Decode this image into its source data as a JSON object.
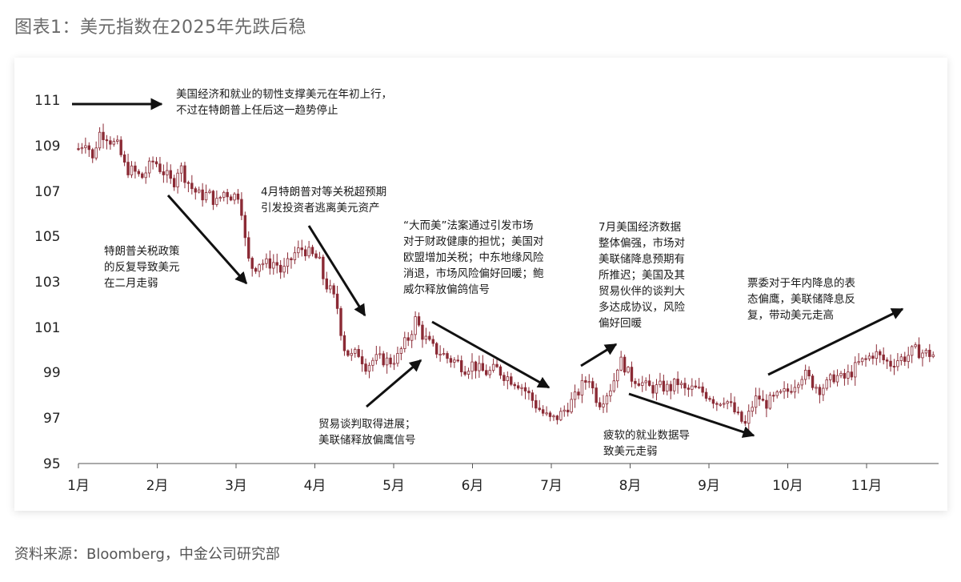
{
  "title": "图表1：美元指数在2025年先跌后稳",
  "source": "资料来源：Bloomberg，中金公司研究部",
  "colors": {
    "candle": "#8b2a35",
    "arrow": "#111111",
    "axis": "#444444"
  },
  "chart_data": {
    "type": "candlestick",
    "ylim": [
      95,
      111
    ],
    "yticks": [
      "95",
      "97",
      "99",
      "101",
      "103",
      "105",
      "107",
      "109",
      "111"
    ],
    "xlim": [
      0,
      10.85
    ],
    "xticks": [
      {
        "label": "1月",
        "x": 0
      },
      {
        "label": "2月",
        "x": 1
      },
      {
        "label": "3月",
        "x": 2
      },
      {
        "label": "4月",
        "x": 3
      },
      {
        "label": "5月",
        "x": 4
      },
      {
        "label": "6月",
        "x": 5
      },
      {
        "label": "7月",
        "x": 6
      },
      {
        "label": "8月",
        "x": 7
      },
      {
        "label": "9月",
        "x": 8
      },
      {
        "label": "10月",
        "x": 9
      },
      {
        "label": "11月",
        "x": 10
      }
    ],
    "anchors": [
      [
        0.0,
        108.9
      ],
      [
        0.1,
        109.3
      ],
      [
        0.18,
        108.4
      ],
      [
        0.26,
        109.6
      ],
      [
        0.35,
        109.5
      ],
      [
        0.42,
        109.2
      ],
      [
        0.5,
        109.0
      ],
      [
        0.6,
        108.0
      ],
      [
        0.7,
        107.9
      ],
      [
        0.8,
        107.6
      ],
      [
        0.88,
        108.0
      ],
      [
        0.96,
        108.4
      ],
      [
        1.04,
        108.0
      ],
      [
        1.1,
        107.8
      ],
      [
        1.2,
        107.3
      ],
      [
        1.28,
        108.2
      ],
      [
        1.36,
        107.6
      ],
      [
        1.45,
        107.1
      ],
      [
        1.55,
        106.8
      ],
      [
        1.65,
        106.9
      ],
      [
        1.75,
        106.5
      ],
      [
        1.85,
        107.0
      ],
      [
        1.95,
        106.8
      ],
      [
        2.05,
        106.9
      ],
      [
        2.1,
        105.2
      ],
      [
        2.15,
        104.0
      ],
      [
        2.22,
        103.6
      ],
      [
        2.3,
        103.9
      ],
      [
        2.4,
        103.8
      ],
      [
        2.5,
        103.9
      ],
      [
        2.58,
        103.4
      ],
      [
        2.66,
        103.8
      ],
      [
        2.75,
        104.3
      ],
      [
        2.85,
        104.5
      ],
      [
        2.95,
        104.2
      ],
      [
        3.05,
        104.0
      ],
      [
        3.12,
        103.0
      ],
      [
        3.2,
        102.6
      ],
      [
        3.28,
        102.0
      ],
      [
        3.36,
        100.2
      ],
      [
        3.45,
        99.7
      ],
      [
        3.55,
        99.9
      ],
      [
        3.65,
        99.3
      ],
      [
        3.75,
        99.6
      ],
      [
        3.85,
        99.6
      ],
      [
        3.95,
        99.5
      ],
      [
        4.05,
        99.7
      ],
      [
        4.12,
        100.2
      ],
      [
        4.2,
        100.6
      ],
      [
        4.28,
        101.4
      ],
      [
        4.36,
        100.7
      ],
      [
        4.45,
        100.3
      ],
      [
        4.52,
        100.0
      ],
      [
        4.6,
        99.9
      ],
      [
        4.7,
        99.6
      ],
      [
        4.8,
        99.5
      ],
      [
        4.9,
        99.2
      ],
      [
        5.0,
        99.4
      ],
      [
        5.1,
        99.1
      ],
      [
        5.2,
        99.0
      ],
      [
        5.3,
        99.2
      ],
      [
        5.4,
        98.9
      ],
      [
        5.5,
        98.7
      ],
      [
        5.6,
        98.5
      ],
      [
        5.7,
        98.1
      ],
      [
        5.8,
        97.6
      ],
      [
        5.9,
        97.2
      ],
      [
        6.0,
        96.9
      ],
      [
        6.1,
        97.1
      ],
      [
        6.2,
        97.5
      ],
      [
        6.3,
        97.9
      ],
      [
        6.4,
        98.5
      ],
      [
        6.48,
        98.8
      ],
      [
        6.55,
        98.0
      ],
      [
        6.62,
        97.7
      ],
      [
        6.7,
        98.1
      ],
      [
        6.78,
        98.5
      ],
      [
        6.86,
        99.6
      ],
      [
        6.93,
        99.3
      ],
      [
        7.0,
        98.8
      ],
      [
        7.1,
        98.7
      ],
      [
        7.2,
        98.4
      ],
      [
        7.3,
        98.3
      ],
      [
        7.4,
        98.4
      ],
      [
        7.5,
        98.3
      ],
      [
        7.6,
        98.6
      ],
      [
        7.7,
        98.2
      ],
      [
        7.8,
        98.3
      ],
      [
        7.9,
        98.2
      ],
      [
        8.0,
        98.0
      ],
      [
        8.1,
        97.7
      ],
      [
        8.2,
        97.9
      ],
      [
        8.3,
        97.4
      ],
      [
        8.38,
        97.0
      ],
      [
        8.46,
        96.7
      ],
      [
        8.54,
        97.5
      ],
      [
        8.62,
        98.0
      ],
      [
        8.7,
        97.6
      ],
      [
        8.8,
        97.8
      ],
      [
        8.9,
        98.0
      ],
      [
        9.0,
        98.2
      ],
      [
        9.1,
        98.6
      ],
      [
        9.2,
        99.0
      ],
      [
        9.3,
        98.6
      ],
      [
        9.4,
        98.3
      ],
      [
        9.5,
        98.5
      ],
      [
        9.6,
        98.9
      ],
      [
        9.7,
        98.7
      ],
      [
        9.8,
        99.0
      ],
      [
        9.9,
        99.4
      ],
      [
        10.0,
        99.6
      ],
      [
        10.1,
        99.9
      ],
      [
        10.2,
        99.6
      ],
      [
        10.3,
        99.4
      ],
      [
        10.4,
        99.6
      ],
      [
        10.5,
        99.7
      ],
      [
        10.6,
        100.0
      ],
      [
        10.7,
        99.9
      ],
      [
        10.85,
        99.8
      ]
    ]
  },
  "annotations": [
    {
      "lines": [
        "美国经济和就业的韧性支撑美元在年初上行，",
        "不过在特朗普上任后这一趋势停止"
      ]
    },
    {
      "lines": [
        "特朗普关税政策",
        "的反复导致美元",
        "在二月走弱"
      ]
    },
    {
      "lines": [
        "4月特朗普对等关税超预期",
        "引发投资者逃离美元资产"
      ]
    },
    {
      "lines": [
        "贸易谈判取得进展；",
        "美联储释放偏鹰信号"
      ]
    },
    {
      "lines": [
        "“大而美”法案通过引发市场",
        "对于财政健康的担忧；美国对",
        "欧盟增加关税；中东地缘风险",
        "消退，市场风险偏好回暖；鲍",
        "威尔释放偏鸽信号"
      ]
    },
    {
      "lines": [
        "7月美国经济数据",
        "整体偏强，市场对",
        "美联储降息预期有",
        "所推迟；美国及其",
        "贸易伙伴的谈判大",
        "多达成协议，风险",
        "偏好回暖"
      ]
    },
    {
      "lines": [
        "疲软的就业数据导",
        "致美元走弱"
      ]
    },
    {
      "lines": [
        "票委对于年内降息的表",
        "态偏鹰，美联储降息反",
        "复，带动美元走高"
      ]
    }
  ]
}
